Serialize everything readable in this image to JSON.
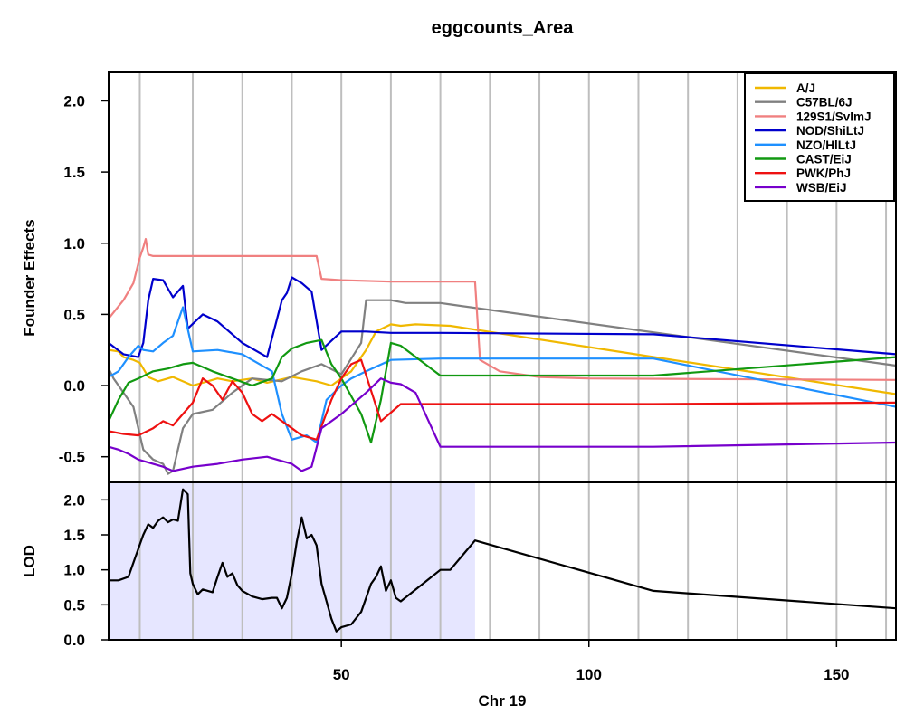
{
  "chart_data": [
    {
      "panel": "founder-effects",
      "type": "line",
      "title": "eggcounts_Area",
      "ylabel": "Founder Effects",
      "xlim": [
        3,
        162
      ],
      "ylim": [
        -0.68,
        2.2
      ],
      "yticks": [
        "2.0",
        "1.5",
        "1.0",
        "0.5",
        "0.0",
        "-0.5"
      ],
      "grid": true,
      "grid_x": [
        9.3,
        20,
        30,
        40,
        50,
        60,
        70,
        80,
        90,
        100,
        110,
        120,
        130,
        140,
        150,
        160
      ],
      "legend_position": "top-right",
      "series": [
        {
          "name": "A/J",
          "color": "#F0B800",
          "points": [
            [
              3,
              0.25
            ],
            [
              5,
              0.24
            ],
            [
              6,
              0.2
            ],
            [
              8,
              0.18
            ],
            [
              9.3,
              0.16
            ],
            [
              10,
              0.12
            ],
            [
              11,
              0.06
            ],
            [
              13,
              0.03
            ],
            [
              16,
              0.06
            ],
            [
              20,
              0.0
            ],
            [
              22,
              0.02
            ],
            [
              25,
              0.05
            ],
            [
              28,
              0.03
            ],
            [
              32,
              0.05
            ],
            [
              35,
              0.02
            ],
            [
              40,
              0.06
            ],
            [
              45,
              0.03
            ],
            [
              48,
              0.0
            ],
            [
              52,
              0.1
            ],
            [
              55,
              0.25
            ],
            [
              57,
              0.38
            ],
            [
              60,
              0.43
            ],
            [
              62,
              0.42
            ],
            [
              65,
              0.43
            ],
            [
              72,
              0.42
            ],
            [
              162,
              -0.06
            ]
          ]
        },
        {
          "name": "C57BL/6J",
          "color": "#808080",
          "points": [
            [
              3,
              0.12
            ],
            [
              4,
              0.05
            ],
            [
              6,
              -0.05
            ],
            [
              8,
              -0.15
            ],
            [
              9,
              -0.3
            ],
            [
              10,
              -0.45
            ],
            [
              12,
              -0.52
            ],
            [
              14,
              -0.55
            ],
            [
              15,
              -0.62
            ],
            [
              16,
              -0.6
            ],
            [
              18,
              -0.3
            ],
            [
              20,
              -0.2
            ],
            [
              24,
              -0.17
            ],
            [
              28,
              -0.05
            ],
            [
              32,
              0.05
            ],
            [
              38,
              0.03
            ],
            [
              42,
              0.1
            ],
            [
              46,
              0.15
            ],
            [
              50,
              0.08
            ],
            [
              54,
              0.3
            ],
            [
              55,
              0.6
            ],
            [
              60,
              0.6
            ],
            [
              63,
              0.58
            ],
            [
              70,
              0.58
            ],
            [
              72,
              0.57
            ],
            [
              162,
              0.14
            ]
          ]
        },
        {
          "name": "129S1/SvImJ",
          "color": "#F08080",
          "points": [
            [
              3,
              0.47
            ],
            [
              6,
              0.6
            ],
            [
              8,
              0.72
            ],
            [
              9.3,
              0.9
            ],
            [
              10,
              0.97
            ],
            [
              10.5,
              1.03
            ],
            [
              11,
              0.92
            ],
            [
              12,
              0.91
            ],
            [
              15,
              0.91
            ],
            [
              20,
              0.91
            ],
            [
              30,
              0.91
            ],
            [
              40,
              0.91
            ],
            [
              45,
              0.91
            ],
            [
              46,
              0.75
            ],
            [
              50,
              0.74
            ],
            [
              60,
              0.73
            ],
            [
              77,
              0.73
            ],
            [
              78,
              0.18
            ],
            [
              82,
              0.1
            ],
            [
              90,
              0.06
            ],
            [
              100,
              0.05
            ],
            [
              162,
              0.04
            ]
          ]
        },
        {
          "name": "NOD/ShiLtJ",
          "color": "#0000CC",
          "points": [
            [
              3,
              0.3
            ],
            [
              6,
              0.22
            ],
            [
              9,
              0.2
            ],
            [
              10,
              0.3
            ],
            [
              11,
              0.6
            ],
            [
              12,
              0.75
            ],
            [
              14,
              0.74
            ],
            [
              16,
              0.62
            ],
            [
              18,
              0.7
            ],
            [
              19,
              0.4
            ],
            [
              22,
              0.5
            ],
            [
              25,
              0.45
            ],
            [
              30,
              0.3
            ],
            [
              35,
              0.2
            ],
            [
              38,
              0.6
            ],
            [
              39,
              0.65
            ],
            [
              40,
              0.76
            ],
            [
              42,
              0.72
            ],
            [
              44,
              0.66
            ],
            [
              46,
              0.25
            ],
            [
              50,
              0.38
            ],
            [
              55,
              0.38
            ],
            [
              60,
              0.37
            ],
            [
              70,
              0.37
            ],
            [
              113,
              0.36
            ],
            [
              162,
              0.22
            ]
          ]
        },
        {
          "name": "NZO/HlLtJ",
          "color": "#1E90FF",
          "points": [
            [
              3,
              0.06
            ],
            [
              5,
              0.1
            ],
            [
              7,
              0.2
            ],
            [
              9,
              0.28
            ],
            [
              10,
              0.25
            ],
            [
              12,
              0.24
            ],
            [
              14,
              0.3
            ],
            [
              16,
              0.35
            ],
            [
              17,
              0.45
            ],
            [
              18,
              0.55
            ],
            [
              20,
              0.24
            ],
            [
              25,
              0.25
            ],
            [
              30,
              0.22
            ],
            [
              36,
              0.1
            ],
            [
              38,
              -0.2
            ],
            [
              40,
              -0.38
            ],
            [
              43,
              -0.35
            ],
            [
              45,
              -0.4
            ],
            [
              47,
              -0.1
            ],
            [
              50,
              0.0
            ],
            [
              52,
              0.05
            ],
            [
              55,
              0.1
            ],
            [
              60,
              0.18
            ],
            [
              70,
              0.19
            ],
            [
              113,
              0.19
            ],
            [
              162,
              -0.15
            ]
          ]
        },
        {
          "name": "CAST/EiJ",
          "color": "#119911",
          "points": [
            [
              3,
              -0.25
            ],
            [
              5,
              -0.1
            ],
            [
              7,
              0.02
            ],
            [
              9,
              0.05
            ],
            [
              12,
              0.1
            ],
            [
              15,
              0.12
            ],
            [
              18,
              0.15
            ],
            [
              20,
              0.16
            ],
            [
              24,
              0.1
            ],
            [
              28,
              0.05
            ],
            [
              32,
              0.0
            ],
            [
              36,
              0.05
            ],
            [
              38,
              0.2
            ],
            [
              40,
              0.26
            ],
            [
              43,
              0.3
            ],
            [
              46,
              0.32
            ],
            [
              48,
              0.15
            ],
            [
              50,
              0.05
            ],
            [
              54,
              -0.2
            ],
            [
              56,
              -0.4
            ],
            [
              58,
              -0.1
            ],
            [
              60,
              0.3
            ],
            [
              62,
              0.28
            ],
            [
              70,
              0.07
            ],
            [
              113,
              0.07
            ],
            [
              162,
              0.2
            ]
          ]
        },
        {
          "name": "PWK/PhJ",
          "color": "#EE1111",
          "points": [
            [
              3,
              -0.32
            ],
            [
              6,
              -0.34
            ],
            [
              9,
              -0.35
            ],
            [
              12,
              -0.3
            ],
            [
              14,
              -0.25
            ],
            [
              16,
              -0.28
            ],
            [
              18,
              -0.2
            ],
            [
              20,
              -0.12
            ],
            [
              22,
              0.05
            ],
            [
              24,
              0.0
            ],
            [
              26,
              -0.1
            ],
            [
              28,
              0.03
            ],
            [
              30,
              -0.05
            ],
            [
              32,
              -0.2
            ],
            [
              34,
              -0.25
            ],
            [
              36,
              -0.2
            ],
            [
              40,
              -0.3
            ],
            [
              42,
              -0.35
            ],
            [
              45,
              -0.38
            ],
            [
              48,
              -0.1
            ],
            [
              50,
              0.05
            ],
            [
              52,
              0.15
            ],
            [
              54,
              0.18
            ],
            [
              58,
              -0.25
            ],
            [
              62,
              -0.13
            ],
            [
              70,
              -0.13
            ],
            [
              113,
              -0.13
            ],
            [
              162,
              -0.12
            ]
          ]
        },
        {
          "name": "WSB/EiJ",
          "color": "#7700CC",
          "points": [
            [
              3,
              -0.43
            ],
            [
              5,
              -0.45
            ],
            [
              7,
              -0.48
            ],
            [
              9,
              -0.52
            ],
            [
              12,
              -0.55
            ],
            [
              14,
              -0.57
            ],
            [
              16,
              -0.6
            ],
            [
              20,
              -0.57
            ],
            [
              25,
              -0.55
            ],
            [
              30,
              -0.52
            ],
            [
              35,
              -0.5
            ],
            [
              40,
              -0.55
            ],
            [
              42,
              -0.6
            ],
            [
              44,
              -0.57
            ],
            [
              46,
              -0.3
            ],
            [
              50,
              -0.2
            ],
            [
              55,
              -0.05
            ],
            [
              58,
              0.05
            ],
            [
              60,
              0.02
            ],
            [
              62,
              0.01
            ],
            [
              65,
              -0.05
            ],
            [
              70,
              -0.43
            ],
            [
              113,
              -0.43
            ],
            [
              162,
              -0.4
            ]
          ]
        }
      ]
    },
    {
      "panel": "lod",
      "type": "line",
      "xlabel": "Chr 19",
      "ylabel": "LOD",
      "xlim": [
        3,
        162
      ],
      "ylim": [
        0,
        2.25
      ],
      "yticks": [
        "2.0",
        "1.5",
        "1.0",
        "0.5",
        "0.0"
      ],
      "xticks": [
        "50",
        "100",
        "150"
      ],
      "xtick_values": [
        50,
        100,
        150
      ],
      "shaded_region": [
        3,
        77
      ],
      "shade_color": "#E6E6FF",
      "grid": true,
      "series": [
        {
          "name": "LOD",
          "color": "#000000",
          "points": [
            [
              3,
              0.85
            ],
            [
              5,
              0.85
            ],
            [
              7,
              0.9
            ],
            [
              9,
              1.3
            ],
            [
              10,
              1.5
            ],
            [
              11,
              1.65
            ],
            [
              12,
              1.6
            ],
            [
              13,
              1.7
            ],
            [
              14,
              1.75
            ],
            [
              15,
              1.68
            ],
            [
              16,
              1.72
            ],
            [
              17,
              1.7
            ],
            [
              18,
              2.15
            ],
            [
              19,
              2.08
            ],
            [
              19.5,
              0.95
            ],
            [
              20,
              0.8
            ],
            [
              21,
              0.65
            ],
            [
              22,
              0.72
            ],
            [
              24,
              0.68
            ],
            [
              25,
              0.9
            ],
            [
              26,
              1.1
            ],
            [
              27,
              0.9
            ],
            [
              28,
              0.95
            ],
            [
              29,
              0.78
            ],
            [
              30,
              0.7
            ],
            [
              32,
              0.62
            ],
            [
              34,
              0.58
            ],
            [
              36,
              0.6
            ],
            [
              37,
              0.6
            ],
            [
              38,
              0.45
            ],
            [
              39,
              0.6
            ],
            [
              40,
              0.95
            ],
            [
              41,
              1.4
            ],
            [
              42,
              1.75
            ],
            [
              43,
              1.45
            ],
            [
              44,
              1.5
            ],
            [
              45,
              1.35
            ],
            [
              46,
              0.8
            ],
            [
              47,
              0.55
            ],
            [
              48,
              0.3
            ],
            [
              49,
              0.12
            ],
            [
              50,
              0.18
            ],
            [
              52,
              0.22
            ],
            [
              54,
              0.4
            ],
            [
              56,
              0.8
            ],
            [
              57,
              0.9
            ],
            [
              58,
              1.05
            ],
            [
              59,
              0.7
            ],
            [
              60,
              0.85
            ],
            [
              61,
              0.6
            ],
            [
              62,
              0.55
            ],
            [
              70,
              1.0
            ],
            [
              72,
              1.0
            ],
            [
              77,
              1.42
            ],
            [
              113,
              0.7
            ],
            [
              162,
              0.45
            ]
          ]
        }
      ]
    }
  ]
}
